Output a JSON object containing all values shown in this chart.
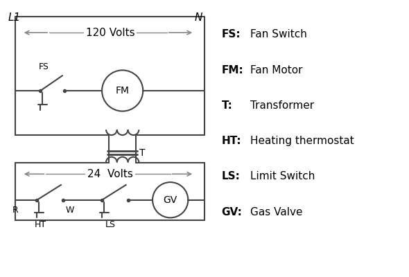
{
  "background_color": "#ffffff",
  "line_color": "#444444",
  "text_color": "#000000",
  "wire_color": "#888888",
  "legend_items": [
    [
      "FS:",
      "Fan Switch"
    ],
    [
      "FM:",
      "Fan Motor"
    ],
    [
      "T:",
      "Transformer"
    ],
    [
      "HT:",
      "Heating thermostat"
    ],
    [
      "LS:",
      "Limit Switch"
    ],
    [
      "GV:",
      "Gas Valve"
    ]
  ],
  "lw": 1.5
}
